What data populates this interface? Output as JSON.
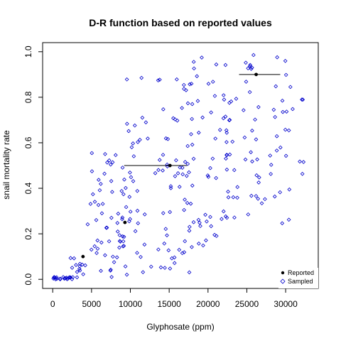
{
  "chart_data": {
    "type": "scatter",
    "title": "D-R function based on reported values",
    "xlabel": "Glyphosate (ppm)",
    "ylabel": "snail mortality rate",
    "xlim": [
      -1300,
      34200
    ],
    "ylim": [
      -0.04,
      1.04
    ],
    "xticks": [
      0,
      5000,
      10000,
      15000,
      20000,
      25000,
      30000
    ],
    "yticks": [
      0.0,
      0.2,
      0.4,
      0.6,
      0.8,
      1.0
    ],
    "ytick_labels": [
      "0.0",
      "0.2",
      "0.4",
      "0.6",
      "0.8",
      "1.0"
    ],
    "grid": false,
    "legend": {
      "position": "bottom-right",
      "entries": [
        {
          "label": "Reported",
          "marker": "filled-circle",
          "color": "#000000"
        },
        {
          "label": "Sampled",
          "marker": "open-diamond",
          "color": "#0000cc"
        }
      ]
    },
    "colors": {
      "reported": "#000000",
      "sampled": "#0000cc"
    },
    "series": [
      {
        "name": "Reported",
        "points": [
          {
            "x": 3900,
            "y": 0.1
          },
          {
            "x": 9300,
            "y": 0.25
          },
          {
            "x": 15100,
            "y": 0.5,
            "xrange": [
              9200,
              17300
            ]
          },
          {
            "x": 26200,
            "y": 0.9,
            "xrange": [
              24000,
              29300
            ]
          }
        ]
      },
      {
        "name": "Sampled",
        "sampling": {
          "seed": 7,
          "clusters": [
            {
              "n": 22,
              "x": [
                0,
                2500
              ],
              "y": [
                0.0,
                0.01
              ]
            },
            {
              "n": 14,
              "x": [
                2000,
                4500
              ],
              "y": [
                0.0,
                0.11
              ]
            },
            {
              "n": 55,
              "x": [
                4500,
                9500
              ],
              "y": [
                0.01,
                0.56
              ]
            },
            {
              "n": 95,
              "x": [
                9000,
                18000
              ],
              "y": [
                0.02,
                0.89
              ]
            },
            {
              "n": 55,
              "x": [
                17000,
                23000
              ],
              "y": [
                0.14,
                0.99
              ]
            },
            {
              "n": 75,
              "x": [
                22000,
                33000
              ],
              "y": [
                0.24,
                0.99
              ]
            }
          ]
        }
      }
    ]
  }
}
